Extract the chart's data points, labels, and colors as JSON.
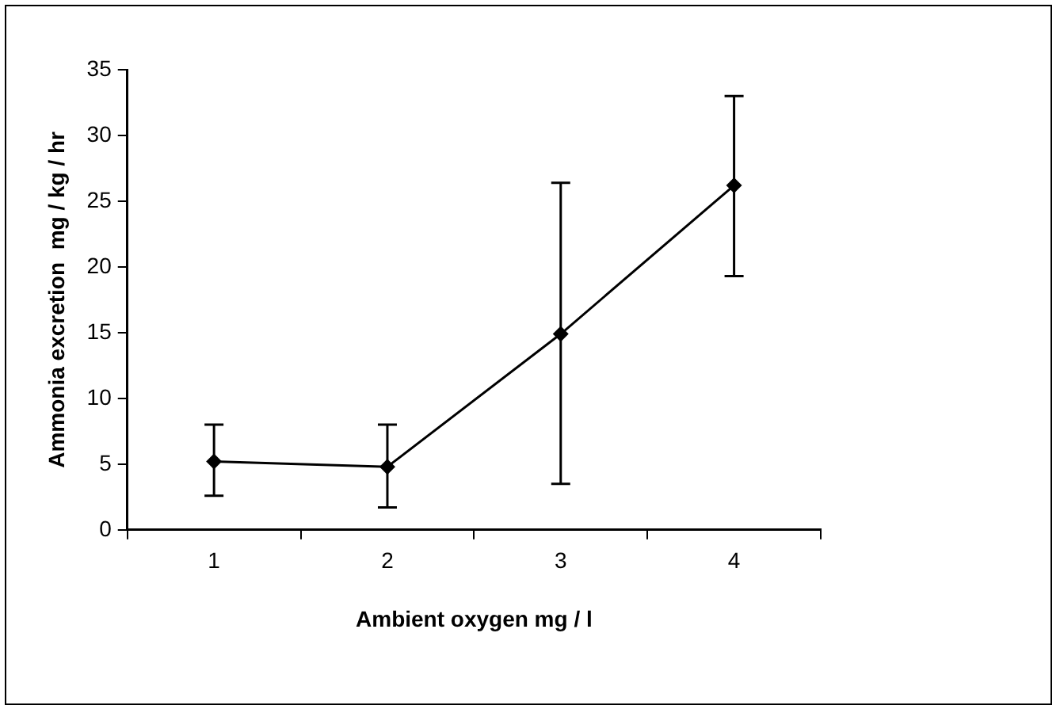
{
  "chart_data": {
    "type": "line",
    "xlabel": "Ambient oxygen mg / l",
    "ylabel": "Ammonia excretion  mg / kg / hr",
    "categories": [
      "1",
      "2",
      "3",
      "4"
    ],
    "series": [
      {
        "color": "#000000",
        "values": [
          5.2,
          4.8,
          14.9,
          26.2
        ],
        "errors": [
          [
            2.6,
            8.0
          ],
          [
            1.7,
            8.0
          ],
          [
            3.5,
            26.4
          ],
          [
            19.3,
            33.0
          ]
        ]
      }
    ],
    "ylim": [
      0,
      35
    ],
    "yticks": [
      0,
      5,
      10,
      15,
      20,
      25,
      30,
      35
    ],
    "grid": false,
    "legend": false,
    "marker": "diamond",
    "line_style": "solid"
  }
}
